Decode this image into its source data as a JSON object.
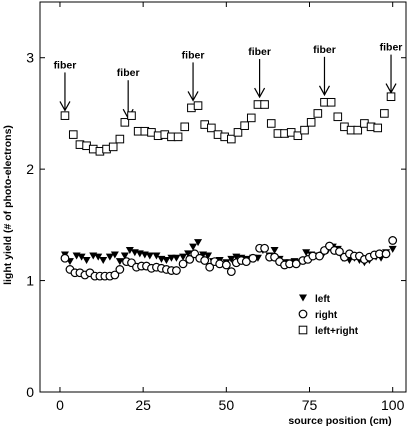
{
  "chart_data": {
    "type": "scatter",
    "xlabel": "source position (cm)",
    "ylabel": "light yield (# of photo-electrons)",
    "xlim": [
      -6,
      104
    ],
    "ylim": [
      0,
      3.5
    ],
    "xticks": [
      0,
      25,
      50,
      75,
      100
    ],
    "yticks": [
      0,
      1,
      2,
      3
    ],
    "grid": false,
    "legend_position": "bottom-right",
    "annotations": [
      {
        "text": "fiber",
        "x": 1.5,
        "y": 2.5
      },
      {
        "text": "fiber",
        "x": 20.5,
        "y": 2.43
      },
      {
        "text": "fiber",
        "x": 40,
        "y": 2.59
      },
      {
        "text": "fiber",
        "x": 60,
        "y": 2.62
      },
      {
        "text": "fiber",
        "x": 79.5,
        "y": 2.64
      },
      {
        "text": "fiber",
        "x": 99.5,
        "y": 2.66
      }
    ],
    "series": [
      {
        "name": "left",
        "marker": "triangle-down",
        "points": [
          [
            1.5,
            1.23
          ],
          [
            3,
            1.17
          ],
          [
            5,
            1.22
          ],
          [
            6.5,
            1.21
          ],
          [
            8,
            1.18
          ],
          [
            10,
            1.22
          ],
          [
            11.5,
            1.21
          ],
          [
            13,
            1.18
          ],
          [
            15,
            1.21
          ],
          [
            16.5,
            1.23
          ],
          [
            18,
            1.17
          ],
          [
            19.5,
            1.22
          ],
          [
            21,
            1.27
          ],
          [
            22.5,
            1.25
          ],
          [
            24,
            1.24
          ],
          [
            25.5,
            1.23
          ],
          [
            27,
            1.22
          ],
          [
            29,
            1.22
          ],
          [
            30.5,
            1.19
          ],
          [
            32,
            1.18
          ],
          [
            33.5,
            1.2
          ],
          [
            35,
            1.2
          ],
          [
            37,
            1.21
          ],
          [
            38.5,
            1.24
          ],
          [
            40,
            1.3
          ],
          [
            41.5,
            1.34
          ],
          [
            43,
            1.23
          ],
          [
            44.5,
            1.22
          ],
          [
            46,
            1.17
          ],
          [
            48,
            1.18
          ],
          [
            50,
            1.16
          ],
          [
            51.5,
            1.19
          ],
          [
            53,
            1.21
          ],
          [
            54.5,
            1.2
          ],
          [
            56,
            1.19
          ],
          [
            58,
            1.2
          ],
          [
            59.5,
            1.2
          ],
          [
            61,
            1.27
          ],
          [
            63,
            1.22
          ],
          [
            64.5,
            1.27
          ],
          [
            66,
            1.19
          ],
          [
            67.5,
            1.16
          ],
          [
            69,
            1.16
          ],
          [
            70.5,
            1.17
          ],
          [
            72,
            1.16
          ],
          [
            74,
            1.25
          ],
          [
            75.5,
            1.23
          ],
          [
            77,
            1.22
          ],
          [
            79,
            1.23
          ],
          [
            80.5,
            1.27
          ],
          [
            82,
            1.3
          ],
          [
            83.5,
            1.28
          ],
          [
            85,
            1.2
          ],
          [
            87,
            1.18
          ],
          [
            88.5,
            1.2
          ],
          [
            90,
            1.18
          ],
          [
            91.5,
            1.16
          ],
          [
            93,
            1.18
          ],
          [
            95,
            1.21
          ],
          [
            96.5,
            1.2
          ],
          [
            98,
            1.25
          ],
          [
            100,
            1.28
          ]
        ]
      },
      {
        "name": "right",
        "marker": "circle",
        "points": [
          [
            1.5,
            1.2
          ],
          [
            3,
            1.1
          ],
          [
            4.5,
            1.07
          ],
          [
            6,
            1.07
          ],
          [
            7.5,
            1.05
          ],
          [
            9,
            1.07
          ],
          [
            10.5,
            1.04
          ],
          [
            12,
            1.04
          ],
          [
            13.5,
            1.04
          ],
          [
            15,
            1.04
          ],
          [
            16.5,
            1.05
          ],
          [
            18,
            1.1
          ],
          [
            20,
            1.17
          ],
          [
            21.5,
            1.16
          ],
          [
            23,
            1.12
          ],
          [
            24.5,
            1.13
          ],
          [
            26,
            1.13
          ],
          [
            27.5,
            1.11
          ],
          [
            29,
            1.12
          ],
          [
            30.5,
            1.11
          ],
          [
            32,
            1.1
          ],
          [
            33.5,
            1.09
          ],
          [
            35,
            1.09
          ],
          [
            37,
            1.15
          ],
          [
            39,
            1.19
          ],
          [
            40.5,
            1.24
          ],
          [
            42,
            1.2
          ],
          [
            43.5,
            1.18
          ],
          [
            45,
            1.12
          ],
          [
            46.5,
            1.17
          ],
          [
            48,
            1.15
          ],
          [
            50,
            1.14
          ],
          [
            51.5,
            1.08
          ],
          [
            53,
            1.16
          ],
          [
            54.5,
            1.18
          ],
          [
            56,
            1.17
          ],
          [
            58,
            1.2
          ],
          [
            60,
            1.29
          ],
          [
            61.5,
            1.29
          ],
          [
            63,
            1.21
          ],
          [
            64.5,
            1.21
          ],
          [
            66,
            1.17
          ],
          [
            67.5,
            1.14
          ],
          [
            69,
            1.15
          ],
          [
            71,
            1.15
          ],
          [
            73,
            1.18
          ],
          [
            74.5,
            1.19
          ],
          [
            76,
            1.22
          ],
          [
            78,
            1.22
          ],
          [
            79.5,
            1.27
          ],
          [
            81,
            1.31
          ],
          [
            82.5,
            1.27
          ],
          [
            84,
            1.26
          ],
          [
            85.5,
            1.21
          ],
          [
            87,
            1.24
          ],
          [
            88.5,
            1.22
          ],
          [
            90,
            1.22
          ],
          [
            91.5,
            1.19
          ],
          [
            93,
            1.21
          ],
          [
            94.5,
            1.23
          ],
          [
            96,
            1.24
          ],
          [
            98,
            1.24
          ],
          [
            100,
            1.36
          ]
        ]
      },
      {
        "name": "left+right",
        "marker": "square",
        "points": [
          [
            1.5,
            2.48
          ],
          [
            4,
            2.31
          ],
          [
            6,
            2.22
          ],
          [
            8,
            2.21
          ],
          [
            10,
            2.18
          ],
          [
            12,
            2.16
          ],
          [
            14,
            2.18
          ],
          [
            16,
            2.2
          ],
          [
            18,
            2.27
          ],
          [
            19.5,
            2.42
          ],
          [
            21.5,
            2.48
          ],
          [
            23.5,
            2.34
          ],
          [
            25.5,
            2.34
          ],
          [
            27.5,
            2.33
          ],
          [
            29.5,
            2.3
          ],
          [
            31.5,
            2.31
          ],
          [
            33.5,
            2.29
          ],
          [
            35.5,
            2.29
          ],
          [
            37.5,
            2.38
          ],
          [
            39.5,
            2.55
          ],
          [
            41.5,
            2.57
          ],
          [
            43.5,
            2.4
          ],
          [
            45.5,
            2.37
          ],
          [
            47.5,
            2.31
          ],
          [
            49.5,
            2.29
          ],
          [
            51.5,
            2.27
          ],
          [
            53.5,
            2.33
          ],
          [
            55.5,
            2.39
          ],
          [
            57.5,
            2.46
          ],
          [
            59.5,
            2.58
          ],
          [
            61.5,
            2.58
          ],
          [
            63.5,
            2.41
          ],
          [
            65.5,
            2.32
          ],
          [
            67.5,
            2.32
          ],
          [
            69.5,
            2.33
          ],
          [
            71.5,
            2.3
          ],
          [
            73.5,
            2.35
          ],
          [
            75.5,
            2.42
          ],
          [
            77.5,
            2.5
          ],
          [
            79.5,
            2.6
          ],
          [
            81.5,
            2.6
          ],
          [
            83.5,
            2.47
          ],
          [
            85.5,
            2.38
          ],
          [
            87.5,
            2.35
          ],
          [
            89.5,
            2.35
          ],
          [
            91.5,
            2.41
          ],
          [
            93.5,
            2.38
          ],
          [
            95.5,
            2.37
          ],
          [
            97.5,
            2.5
          ],
          [
            99.5,
            2.65
          ]
        ]
      }
    ]
  }
}
